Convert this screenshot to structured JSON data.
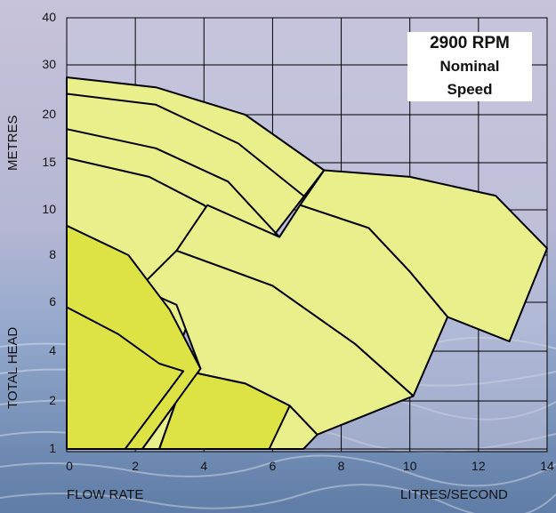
{
  "annotation": {
    "rpm": "2900 RPM",
    "line1": "Nominal",
    "line2": "Speed"
  },
  "axes": {
    "y_top_label": "METRES",
    "y_bottom_label": "TOTAL HEAD",
    "x_left_label": "FLOW RATE",
    "x_right_label": "LITRES/SECOND"
  },
  "chart_data": {
    "type": "area",
    "title": "2900 RPM Nominal Speed",
    "xlabel": "FLOW RATE  LITRES/SECOND",
    "ylabel": "TOTAL HEAD  METRES",
    "x_ticks": [
      "0",
      "2",
      "4",
      "6",
      "8",
      "10",
      "12",
      "14"
    ],
    "y_ticks": [
      "1",
      "2",
      "4",
      "6",
      "8",
      "10",
      "15",
      "20",
      "30",
      "40"
    ],
    "xlim": [
      0,
      14
    ],
    "y_scale": "log",
    "ylim": [
      1,
      40
    ],
    "grid": true,
    "series": [
      {
        "top": [
          [
            0,
            27.5
          ],
          [
            2.6,
            25.5
          ],
          [
            5.2,
            20
          ],
          [
            7.5,
            14.2
          ]
        ],
        "bottom": [
          [
            7.5,
            14.2
          ],
          [
            6,
            10
          ]
        ],
        "fill": "#e9ef8a"
      },
      {
        "top": [
          [
            0,
            24.2
          ],
          [
            2.6,
            22
          ],
          [
            5,
            17
          ],
          [
            6.9,
            11.5
          ]
        ],
        "fill": "#e9ef8a"
      },
      {
        "top": [
          [
            0,
            18.5
          ],
          [
            2.6,
            16.5
          ],
          [
            4.7,
            13
          ],
          [
            6.2,
            8.8
          ]
        ],
        "fill": "#e9ef8a"
      },
      {
        "top": [
          [
            0,
            15.5
          ],
          [
            2.4,
            13.5
          ],
          [
            4.1,
            10.5
          ],
          [
            6,
            7.3
          ]
        ],
        "fill": "#e9ef8a"
      },
      {
        "top": [
          [
            7.5,
            14.2
          ],
          [
            10,
            13.5
          ],
          [
            12.5,
            11.5
          ],
          [
            14,
            8.3
          ]
        ],
        "bottom": [
          [
            14,
            8.3
          ],
          [
            12.9,
            4.4
          ]
        ],
        "fill": "#e9ef8a"
      },
      {
        "top": [
          [
            6.8,
            10.5
          ],
          [
            8.8,
            9.2
          ],
          [
            10,
            7.3
          ],
          [
            11.1,
            5.4
          ]
        ],
        "fill": "#e9ef8a"
      },
      {
        "top": [
          [
            3.2,
            8.2
          ],
          [
            6,
            6.7
          ],
          [
            8.4,
            4.3
          ],
          [
            10.1,
            2.2
          ]
        ],
        "fill": "#e9ef8a"
      },
      {
        "top": [
          [
            3.5,
            3.2
          ],
          [
            5.2,
            2.7
          ],
          [
            6.5,
            1.9
          ],
          [
            7.3,
            1.3
          ]
        ],
        "fill": "#e9ef8a"
      },
      {
        "top": [
          [
            0,
            9.3
          ],
          [
            1.8,
            8.0
          ],
          [
            3.0,
            5.7
          ],
          [
            3.9,
            3.3
          ]
        ],
        "fill": "#dde344"
      },
      {
        "top": [
          [
            0,
            5.8
          ],
          [
            1.5,
            4.7
          ],
          [
            2.7,
            3.5
          ],
          [
            3.4,
            3.2
          ]
        ],
        "fill": "#dde344"
      },
      {
        "top": [
          [
            3.5,
            3.2
          ],
          [
            5.2,
            2.7
          ],
          [
            6.5,
            1.9
          ]
        ],
        "fill": "#dde344"
      }
    ]
  }
}
